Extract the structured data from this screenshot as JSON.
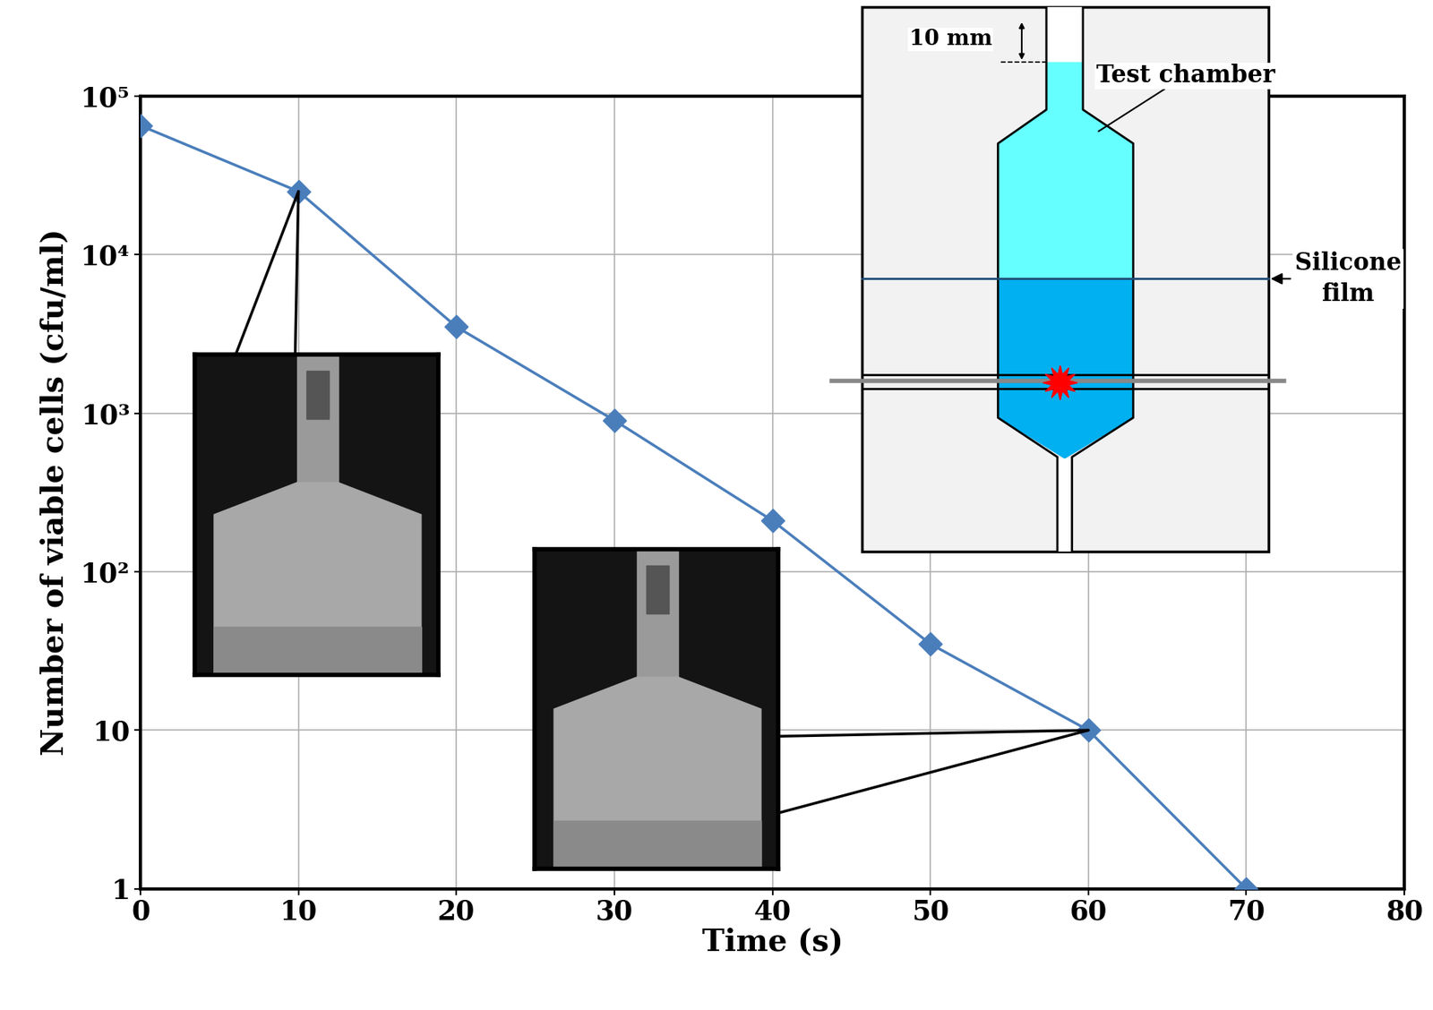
{
  "chart_data": {
    "type": "line",
    "x_label": "Time (s)",
    "y_label": "Number of viable cells (cfu/ml)",
    "x": [
      0,
      10,
      20,
      30,
      40,
      50,
      60,
      70
    ],
    "values": [
      65000,
      25000,
      3500,
      900,
      210,
      35,
      10,
      1
    ],
    "color": "#4a7ebb",
    "marker": "D",
    "line_style": "solid",
    "log": "y",
    "grid": true,
    "xlim": [
      0,
      80
    ],
    "xticks": [
      0,
      10,
      20,
      30,
      40,
      50,
      60,
      70,
      80
    ],
    "ylim": [
      1,
      100000
    ],
    "yticks": [
      1,
      10,
      {
        "value": 100,
        "label": "10²"
      },
      {
        "value": 1000,
        "label": "10³"
      },
      {
        "value": 10000,
        "label": "10⁴"
      },
      {
        "value": 100000,
        "label": "10⁵"
      }
    ],
    "annotations": {
      "dimension": "10 mm",
      "chamber": "Test chamber",
      "film": "Silicone\nfilm"
    }
  }
}
